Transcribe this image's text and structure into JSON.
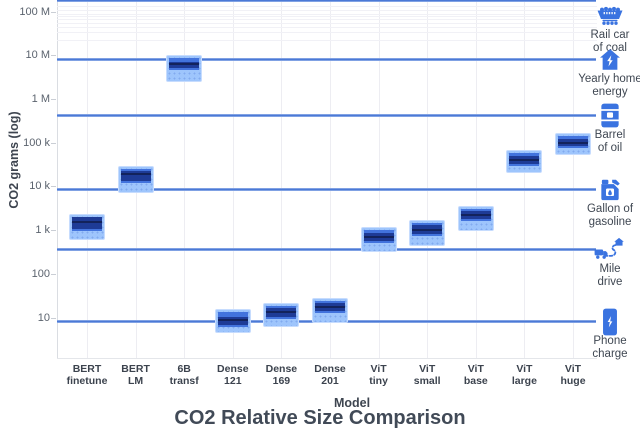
{
  "title": "CO2 Relative Size Comparison",
  "colors": {
    "icon_blue": "#3a73e0",
    "reference_line": "#4b79d6",
    "box_light": "#9ec5fc",
    "box_mid": "#4273dd",
    "box_dark": "#1e3b96",
    "box_median_line": "#13235c",
    "title_text": "#414a57"
  },
  "chart_data": {
    "type": "box",
    "title": "CO2 Relative Size Comparison",
    "xlabel": "Model",
    "ylabel": "CO2 grams (log)",
    "yscale": "log",
    "ylim": [
      1.5,
      300000000
    ],
    "grid": "vertical-only",
    "y_ticks": [
      {
        "label": "100 M",
        "exp": 8
      },
      {
        "label": "10 M",
        "exp": 7
      },
      {
        "label": "1 M",
        "exp": 6
      },
      {
        "label": "100 k",
        "exp": 5
      },
      {
        "label": "10 k",
        "exp": 4
      },
      {
        "label": "1 k",
        "exp": 3
      },
      {
        "label": "100",
        "exp": 2
      },
      {
        "label": "10",
        "exp": 1
      }
    ],
    "categories": [
      "BERT finetune",
      "BERT LM",
      "6B transf",
      "Dense 121",
      "Dense 169",
      "Dense 201",
      "ViT tiny",
      "ViT small",
      "ViT base",
      "ViT large",
      "ViT huge"
    ],
    "category_label_lines": [
      [
        "BERT",
        "finetune"
      ],
      [
        "BERT",
        "LM"
      ],
      [
        "6B",
        "transf"
      ],
      [
        "Dense",
        "121"
      ],
      [
        "Dense",
        "169"
      ],
      [
        "Dense",
        "201"
      ],
      [
        "ViT",
        "tiny"
      ],
      [
        "ViT",
        "small"
      ],
      [
        "ViT",
        "base"
      ],
      [
        "ViT",
        "large"
      ],
      [
        "ViT",
        "huge"
      ]
    ],
    "series": [
      {
        "name": "BERT finetune",
        "low": 600,
        "q1": 1100,
        "median": 1650,
        "q3": 2100,
        "high": 2300
      },
      {
        "name": "BERT LM",
        "low": 7000,
        "q1": 14000,
        "median": 20000,
        "q3": 24000,
        "high": 29000
      },
      {
        "name": "6B transf",
        "low": 2500000,
        "q1": 5500000,
        "median": 6500000,
        "q3": 7500000,
        "high": 10000000
      },
      {
        "name": "Dense 121",
        "low": 4.5,
        "q1": 7,
        "median": 9,
        "q3": 11,
        "high": 15.5
      },
      {
        "name": "Dense 169",
        "low": 6,
        "q1": 11,
        "median": 14,
        "q3": 17,
        "high": 21
      },
      {
        "name": "Dense 201",
        "low": 7.5,
        "q1": 15,
        "median": 18.5,
        "q3": 23,
        "high": 28
      },
      {
        "name": "ViT tiny",
        "low": 320,
        "q1": 600,
        "median": 730,
        "q3": 900,
        "high": 1200
      },
      {
        "name": "ViT small",
        "low": 430,
        "q1": 850,
        "median": 1080,
        "q3": 1350,
        "high": 1750
      },
      {
        "name": "ViT base",
        "low": 950,
        "q1": 1900,
        "median": 2300,
        "q3": 2900,
        "high": 3550
      },
      {
        "name": "ViT large",
        "low": 20000,
        "q1": 35000,
        "median": 42000,
        "q3": 52000,
        "high": 70000
      },
      {
        "name": "ViT huge",
        "low": 52000,
        "q1": 90000,
        "median": 105000,
        "q3": 130000,
        "high": 170000
      }
    ],
    "reference_lines": [
      {
        "label": "Rail car of coal",
        "grams": 180000000
      },
      {
        "label": "Yearly home energy",
        "grams": 8000000
      },
      {
        "label": "Barrel of oil",
        "grams": 430000
      },
      {
        "label": "Gallon of gasoline",
        "grams": 8700
      },
      {
        "label": "Mile drive",
        "grams": 370
      },
      {
        "label": "Phone charge",
        "grams": 8
      }
    ]
  },
  "references": [
    {
      "label": "Rail car of coal",
      "label_lines": [
        "Rail car",
        "of coal"
      ],
      "icon": "rail-car-icon",
      "grams": 180000000
    },
    {
      "label": "Yearly home energy",
      "label_lines": [
        "Yearly home",
        "energy"
      ],
      "icon": "home-energy-icon",
      "grams": 8000000
    },
    {
      "label": "Barrel of oil",
      "label_lines": [
        "Barrel",
        "of oil"
      ],
      "icon": "oil-barrel-icon",
      "grams": 430000
    },
    {
      "label": "Gallon of gasoline",
      "label_lines": [
        "Gallon of",
        "gasoline"
      ],
      "icon": "gas-can-icon",
      "grams": 8700
    },
    {
      "label": "Mile drive",
      "label_lines": [
        "Mile",
        "drive"
      ],
      "icon": "truck-route-icon",
      "grams": 370
    },
    {
      "label": "Phone charge",
      "label_lines": [
        "Phone",
        "charge"
      ],
      "icon": "phone-charge-icon",
      "grams": 8
    }
  ]
}
